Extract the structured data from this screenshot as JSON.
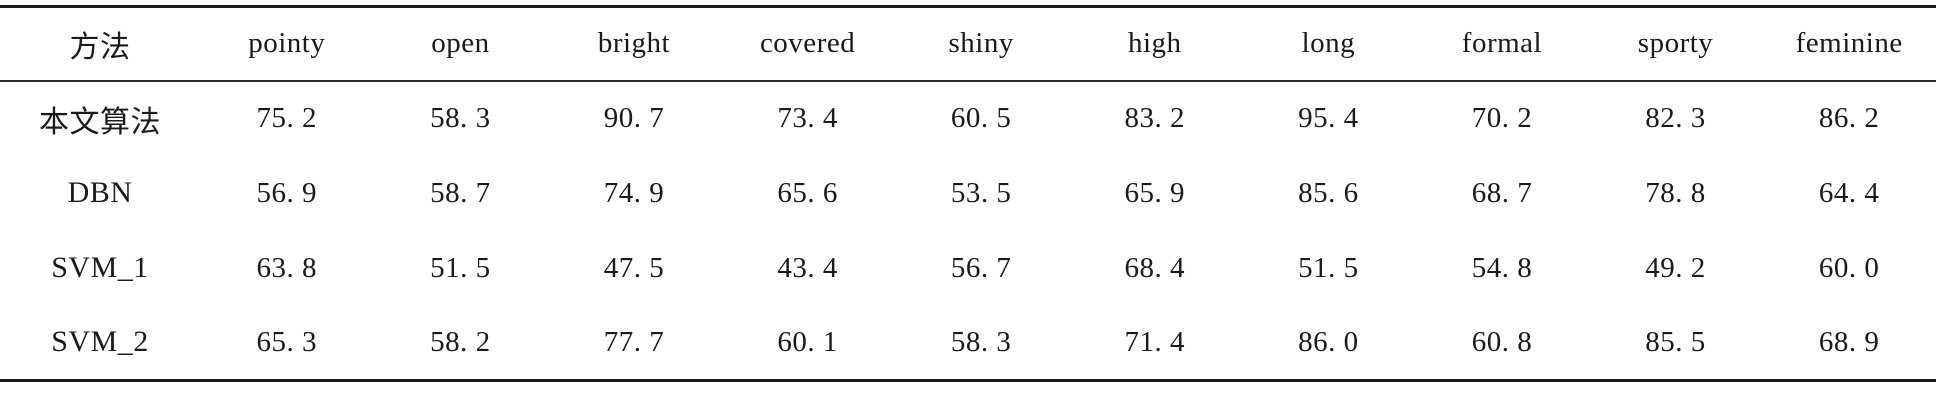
{
  "table": {
    "header": {
      "method": "方法",
      "cols": [
        "pointy",
        "open",
        "bright",
        "covered",
        "shiny",
        "high",
        "long",
        "formal",
        "sporty",
        "feminine"
      ]
    },
    "rows": [
      {
        "label": "本文算法",
        "values": [
          "75. 2",
          "58. 3",
          "90. 7",
          "73. 4",
          "60. 5",
          "83. 2",
          "95. 4",
          "70. 2",
          "82. 3",
          "86. 2"
        ]
      },
      {
        "label": "DBN",
        "values": [
          "56. 9",
          "58. 7",
          "74. 9",
          "65. 6",
          "53. 5",
          "65. 9",
          "85. 6",
          "68. 7",
          "78. 8",
          "64. 4"
        ]
      },
      {
        "label": "SVM_1",
        "values": [
          "63. 8",
          "51. 5",
          "47. 5",
          "43. 4",
          "56. 7",
          "68. 4",
          "51. 5",
          "54. 8",
          "49. 2",
          "60. 0"
        ]
      },
      {
        "label": "SVM_2",
        "values": [
          "65. 3",
          "58. 2",
          "77. 7",
          "60. 1",
          "58. 3",
          "71. 4",
          "86. 0",
          "60. 8",
          "85. 5",
          "68. 9"
        ]
      }
    ],
    "colors": {
      "rule": "#1c1c1c",
      "text": "#1a1a1a",
      "background": "#ffffff"
    }
  }
}
